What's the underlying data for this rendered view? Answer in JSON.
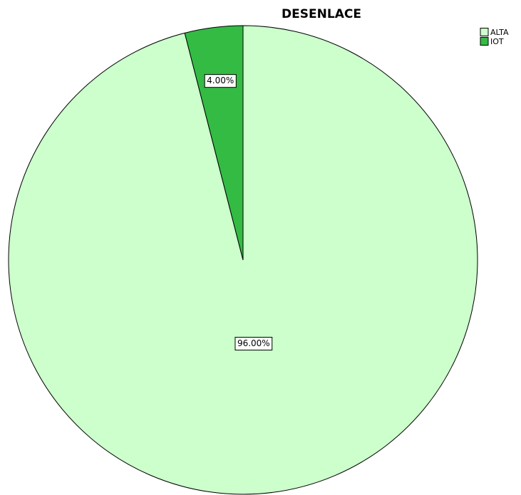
{
  "chart_data": {
    "type": "pie",
    "title": "DESENLACE",
    "categories": [
      "ALTA",
      "IOT"
    ],
    "values": [
      96,
      4
    ],
    "value_labels": [
      "96.00%",
      "4.00%"
    ],
    "colors": [
      "#ccffcc",
      "#33bb44"
    ],
    "legend": "top-right"
  }
}
